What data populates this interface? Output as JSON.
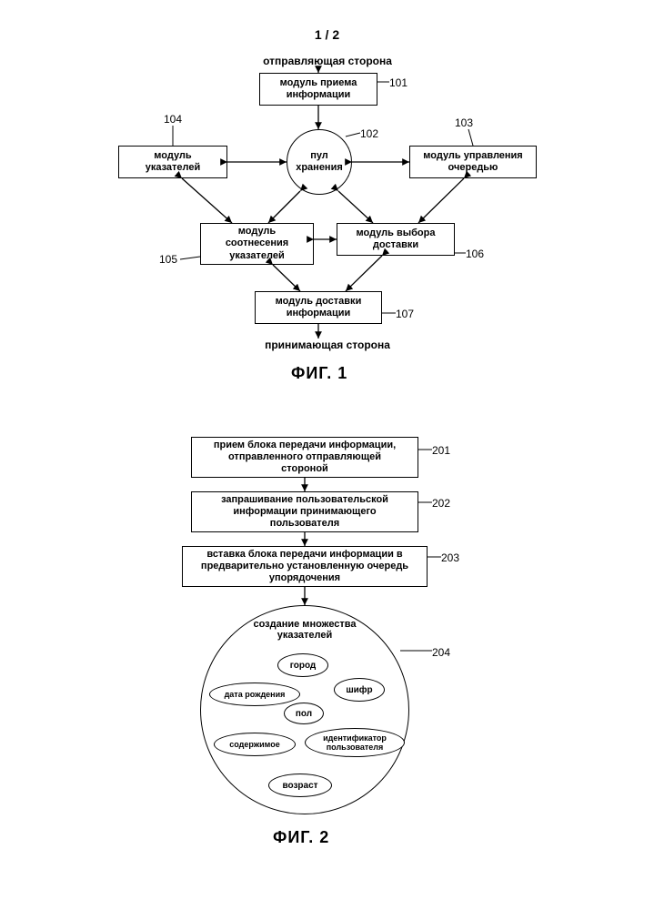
{
  "page_number": "1 / 2",
  "fig1": {
    "label": "ФИГ. 1",
    "top_text": "отправляющая сторона",
    "bottom_text": "принимающая сторона",
    "nodes": {
      "n101": {
        "label": "модуль приема\nинформации",
        "ref": "101"
      },
      "n102": {
        "label": "пул\nхранения",
        "ref": "102"
      },
      "n103": {
        "label": "модуль управления\nочередью",
        "ref": "103"
      },
      "n104": {
        "label": "модуль\nуказателей",
        "ref": "104"
      },
      "n105": {
        "label": "модуль\nсоотнесения\nуказателей",
        "ref": "105"
      },
      "n106": {
        "label": "модуль выбора\nдоставки",
        "ref": "106"
      },
      "n107": {
        "label": "модуль доставки\nинформации",
        "ref": "107"
      }
    },
    "colors": {
      "stroke": "#000000",
      "bg": "#ffffff"
    }
  },
  "fig2": {
    "label": "ФИГ. 2",
    "steps": {
      "s201": {
        "label": "прием блока передачи информации,\nотправленного отправляющей\nстороной",
        "ref": "201"
      },
      "s202": {
        "label": "запрашивание пользовательской\nинформации принимающего\nпользователя",
        "ref": "202"
      },
      "s203": {
        "label": "вставка блока передачи информации в\nпредварительно установленную очередь\nупорядочения",
        "ref": "203"
      },
      "s204": {
        "label": "создание множества\nуказателей",
        "ref": "204"
      }
    },
    "bubbles": {
      "city": "город",
      "dob": "дата рождения",
      "gender": "пол",
      "cipher": "шифр",
      "content": "содержимое",
      "userid": "идентификатор\nпользователя",
      "age": "возраст"
    },
    "colors": {
      "stroke": "#000000",
      "bg": "#ffffff"
    }
  }
}
